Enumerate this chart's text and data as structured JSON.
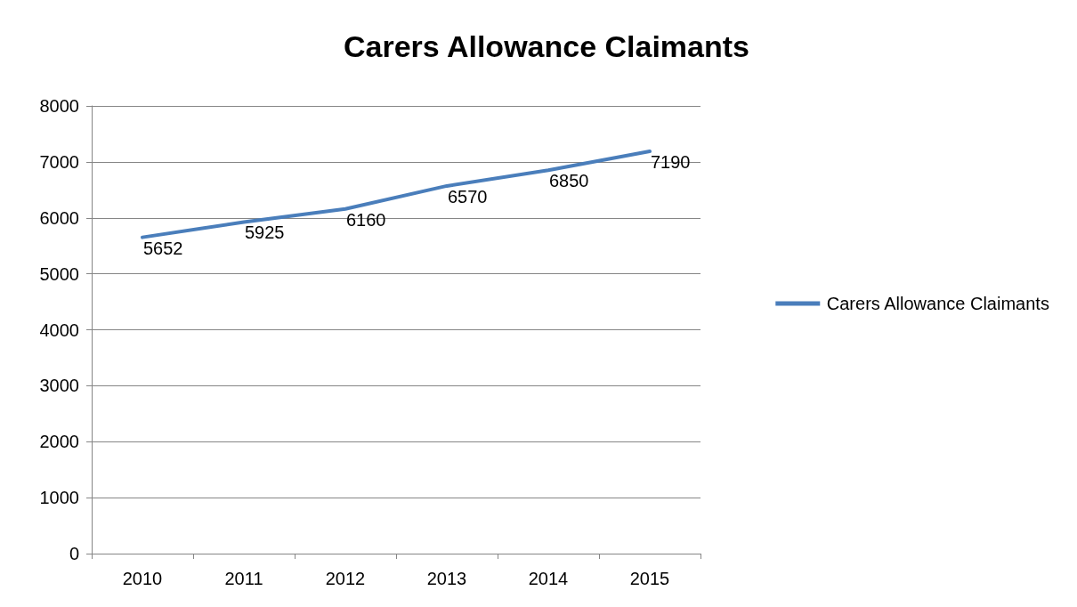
{
  "chart_data": {
    "type": "line",
    "title": "Carers Allowance Claimants",
    "categories": [
      "2010",
      "2011",
      "2012",
      "2013",
      "2014",
      "2015"
    ],
    "series": [
      {
        "name": "Carers Allowance Claimants",
        "color": "#4a7ebb",
        "values": [
          5652,
          5925,
          6160,
          6570,
          6850,
          7190
        ]
      }
    ],
    "ylim": [
      0,
      8000
    ],
    "yticks": [
      0,
      1000,
      2000,
      3000,
      4000,
      5000,
      6000,
      7000,
      8000
    ],
    "grid": "y",
    "legend": "right",
    "marker": "none",
    "data_labels": true
  }
}
